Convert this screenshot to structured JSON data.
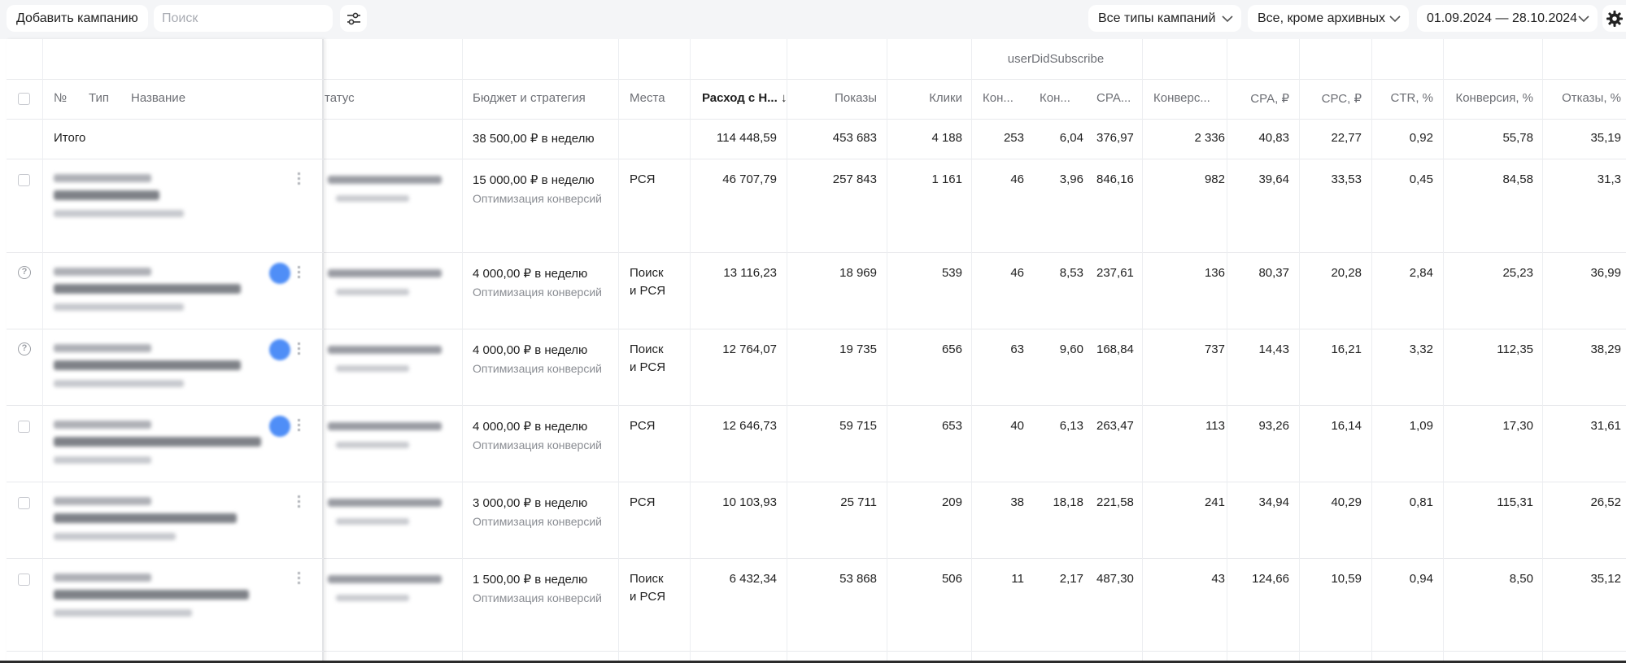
{
  "toolbar": {
    "add_campaign": "Добавить кампанию",
    "search_placeholder": "Поиск",
    "filter_icon": "sliders-icon",
    "campaign_types": "Все типы кампаний",
    "archive_filter": "Все, кроме архивных",
    "date_range": "01.09.2024 — 28.10.2024",
    "settings_icon": "gear-icon"
  },
  "table": {
    "group_header": "userDidSubscribe",
    "headers": {
      "num": "№",
      "type": "Тип",
      "name": "Название",
      "status": "татус",
      "budget": "Бюджет и стратегия",
      "places": "Места",
      "spend": "Расход с Н...",
      "impressions": "Показы",
      "clicks": "Клики",
      "conv1": "Кон...",
      "conv2": "Кон...",
      "cpa_goal": "СРА...",
      "conv_goal": "Конверс...",
      "cpa": "СРА, ₽",
      "cpc": "СРС, ₽",
      "ctr": "CTR, %",
      "conv_rate": "Конверсия, %",
      "bounce": "Отказы, %"
    },
    "total": {
      "label": "Итого",
      "budget": "38 500,00 ₽ в неделю",
      "spend": "114 448,59",
      "impressions": "453 683",
      "clicks": "4 188",
      "conv1": "253",
      "conv2": "6,04",
      "cpa_goal": "376,97",
      "conv_goal": "2 336",
      "cpa": "40,83",
      "cpc": "22,77",
      "ctr": "0,92",
      "conv_rate": "55,78",
      "bounce": "35,19"
    },
    "rows": [
      {
        "budget": "15 000,00 ₽ в неделю",
        "strategy": "Оптимизация конверсий",
        "places1": "РСЯ",
        "places2": "",
        "spend": "46 707,79",
        "impressions": "257 843",
        "clicks": "1 161",
        "conv1": "46",
        "conv2": "3,96",
        "cpa_goal": "846,16",
        "conv_goal": "982",
        "cpa": "39,64",
        "cpc": "33,53",
        "ctr": "0,45",
        "conv_rate": "84,58",
        "bounce": "31,3"
      },
      {
        "budget": "4 000,00 ₽ в неделю",
        "strategy": "Оптимизация конверсий",
        "places1": "Поиск",
        "places2": "и РСЯ",
        "spend": "13 116,23",
        "impressions": "18 969",
        "clicks": "539",
        "conv1": "46",
        "conv2": "8,53",
        "cpa_goal": "237,61",
        "conv_goal": "136",
        "cpa": "80,37",
        "cpc": "20,28",
        "ctr": "2,84",
        "conv_rate": "25,23",
        "bounce": "36,99"
      },
      {
        "budget": "4 000,00 ₽ в неделю",
        "strategy": "Оптимизация конверсий",
        "places1": "Поиск",
        "places2": "и РСЯ",
        "spend": "12 764,07",
        "impressions": "19 735",
        "clicks": "656",
        "conv1": "63",
        "conv2": "9,60",
        "cpa_goal": "168,84",
        "conv_goal": "737",
        "cpa": "14,43",
        "cpc": "16,21",
        "ctr": "3,32",
        "conv_rate": "112,35",
        "bounce": "38,29"
      },
      {
        "budget": "4 000,00 ₽ в неделю",
        "strategy": "Оптимизация конверсий",
        "places1": "РСЯ",
        "places2": "",
        "spend": "12 646,73",
        "impressions": "59 715",
        "clicks": "653",
        "conv1": "40",
        "conv2": "6,13",
        "cpa_goal": "263,47",
        "conv_goal": "113",
        "cpa": "93,26",
        "cpc": "16,14",
        "ctr": "1,09",
        "conv_rate": "17,30",
        "bounce": "31,61"
      },
      {
        "budget": "3 000,00 ₽ в неделю",
        "strategy": "Оптимизация конверсий",
        "places1": "РСЯ",
        "places2": "",
        "spend": "10 103,93",
        "impressions": "25 711",
        "clicks": "209",
        "conv1": "38",
        "conv2": "18,18",
        "cpa_goal": "221,58",
        "conv_goal": "241",
        "cpa": "34,94",
        "cpc": "40,29",
        "ctr": "0,81",
        "conv_rate": "115,31",
        "bounce": "26,52"
      },
      {
        "budget": "1 500,00 ₽ в неделю",
        "strategy": "Оптимизация конверсий",
        "places1": "Поиск",
        "places2": "и РСЯ",
        "spend": "6 432,34",
        "impressions": "53 868",
        "clicks": "506",
        "conv1": "11",
        "conv2": "2,17",
        "cpa_goal": "487,30",
        "conv_goal": "43",
        "cpa": "124,66",
        "cpc": "10,59",
        "ctr": "0,94",
        "conv_rate": "8,50",
        "bounce": "35,12"
      }
    ]
  }
}
